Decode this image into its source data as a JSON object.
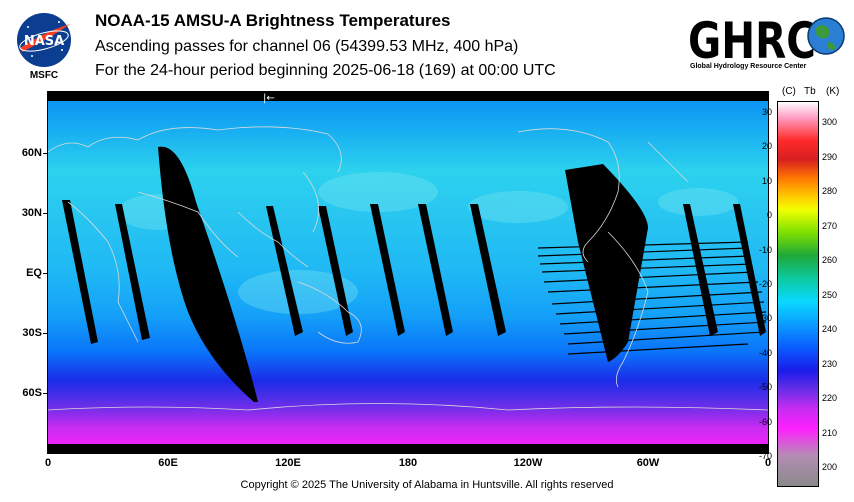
{
  "header": {
    "title": "NOAA-15 AMSU-A Brightness Temperatures",
    "line2": "Ascending passes for channel 06 (54399.53 MHz, 400 hPa)",
    "line3": "For the 24-hour period beginning 2025-06-18 (169) at 00:00 UTC"
  },
  "logos": {
    "nasa": "NASA",
    "nasa_center": "MSFC",
    "ghrc": "GHRC",
    "ghrc_full": "Global Hydrology Resource Center"
  },
  "map": {
    "lat_labels": [
      "60N",
      "30N",
      "EQ",
      "30S",
      "60S"
    ],
    "lon_labels": [
      "0",
      "60E",
      "120E",
      "180",
      "120W",
      "60W",
      "0"
    ],
    "arrow_glyph": "|←"
  },
  "colorbar": {
    "header_c": "(C)",
    "header_tb": "Tb",
    "header_k": "(K)",
    "celsius_ticks": [
      "30",
      "20",
      "10",
      "0",
      "-10",
      "-20",
      "-30",
      "-40",
      "-50",
      "-60",
      "-70"
    ],
    "kelvin_ticks": [
      "300",
      "290",
      "280",
      "270",
      "260",
      "250",
      "240",
      "230",
      "220",
      "210",
      "200"
    ]
  },
  "footer": {
    "copyright": "Copyright © 2025 The University of Alabama in Huntsville.  All rights reserved"
  }
}
